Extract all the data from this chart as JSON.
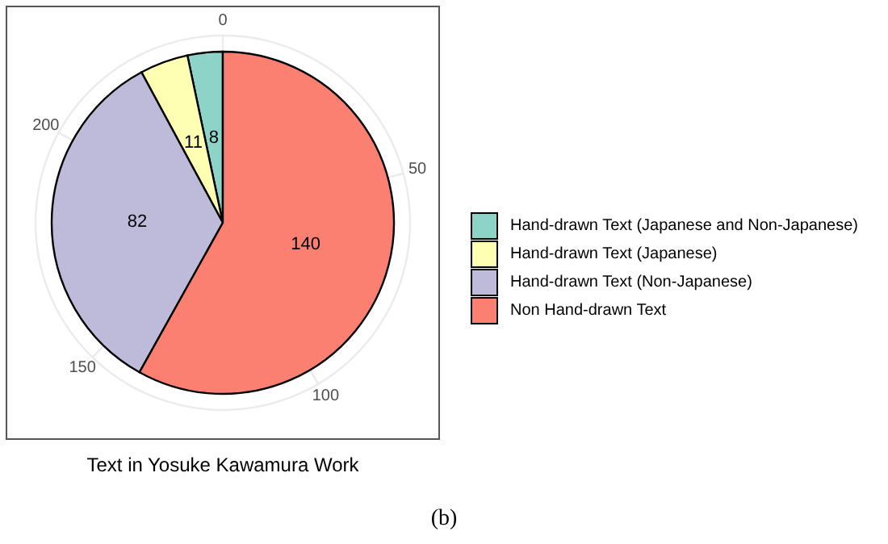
{
  "chart_data": {
    "type": "pie",
    "title": "Text in Yosuke Kawamura Work",
    "categories": [
      "Hand-drawn Text (Japanese and Non-Japanese)",
      "Hand-drawn Text (Japanese)",
      "Hand-drawn Text (Non-Japanese)",
      "Non Hand-drawn Text"
    ],
    "values": [
      8,
      11,
      82,
      140
    ],
    "colors": [
      "#8dd3c7",
      "#ffffb3",
      "#bebada",
      "#fb8072"
    ],
    "grid": true,
    "legend": "right",
    "data_labels": true,
    "annotations": [
      "0",
      "50",
      "100",
      "150",
      "200",
      "(b)"
    ]
  }
}
